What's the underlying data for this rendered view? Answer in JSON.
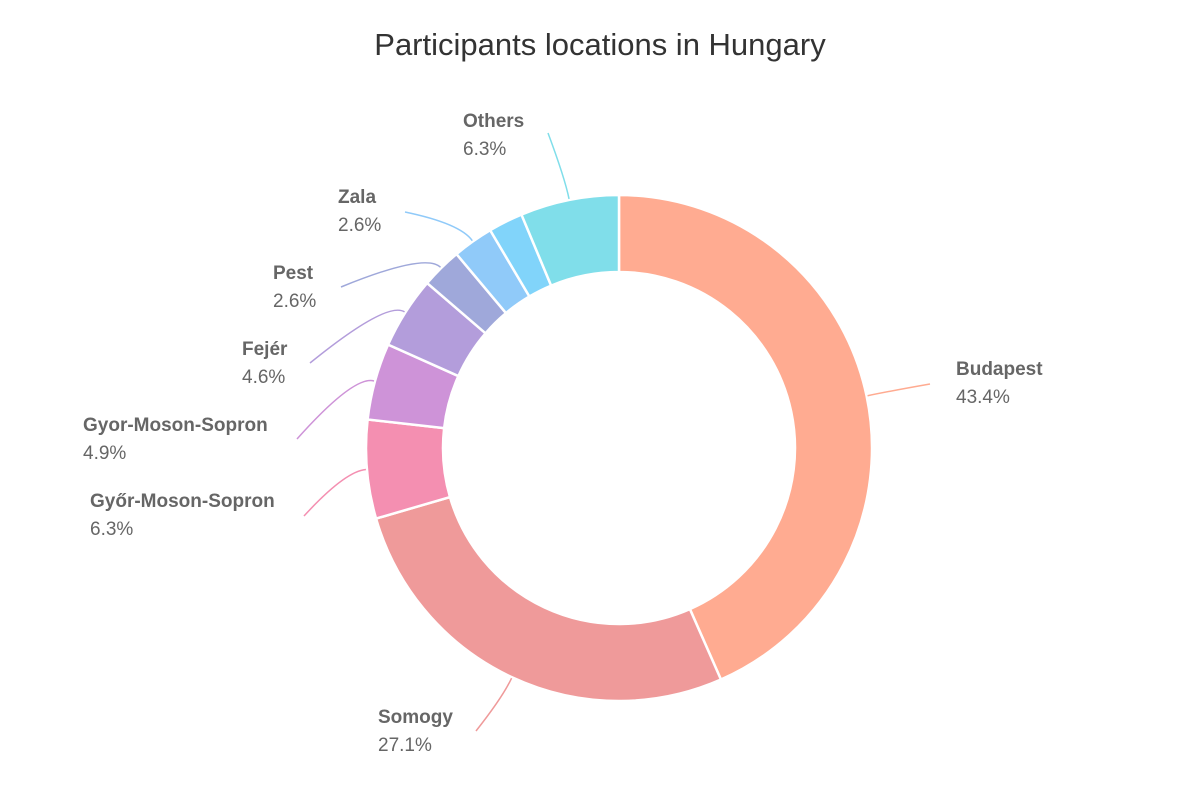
{
  "chart_data": {
    "type": "pie",
    "subtype": "donut",
    "title": "Participants locations in Hungary",
    "slices": [
      {
        "label": "Budapest",
        "value": 43.4,
        "value_label": "43.4%",
        "color": "#FFAB91"
      },
      {
        "label": "Somogy",
        "value": 27.1,
        "value_label": "27.1%",
        "color": "#EF9A9A"
      },
      {
        "label": "Győr-Moson-Sopron",
        "value": 6.3,
        "value_label": "6.3%",
        "color": "#F48FB1"
      },
      {
        "label": "Gyor-Moson-Sopron",
        "value": 4.9,
        "value_label": "4.9%",
        "color": "#CE93D8"
      },
      {
        "label": "Fejér",
        "value": 4.6,
        "value_label": "4.6%",
        "color": "#B39DDB"
      },
      {
        "label": "Pest",
        "value": 2.6,
        "value_label": "2.6%",
        "color": "#9FA8DA"
      },
      {
        "label": "Zala",
        "value": 2.6,
        "value_label": "2.6%",
        "color": "#90CAF9"
      },
      {
        "label": "",
        "value": 2.2,
        "value_label": "",
        "color": "#81D4FA"
      },
      {
        "label": "Others",
        "value": 6.3,
        "value_label": "6.3%",
        "color": "#80DEEA"
      }
    ],
    "start": "top",
    "direction": "clockwise",
    "legend": "none"
  }
}
